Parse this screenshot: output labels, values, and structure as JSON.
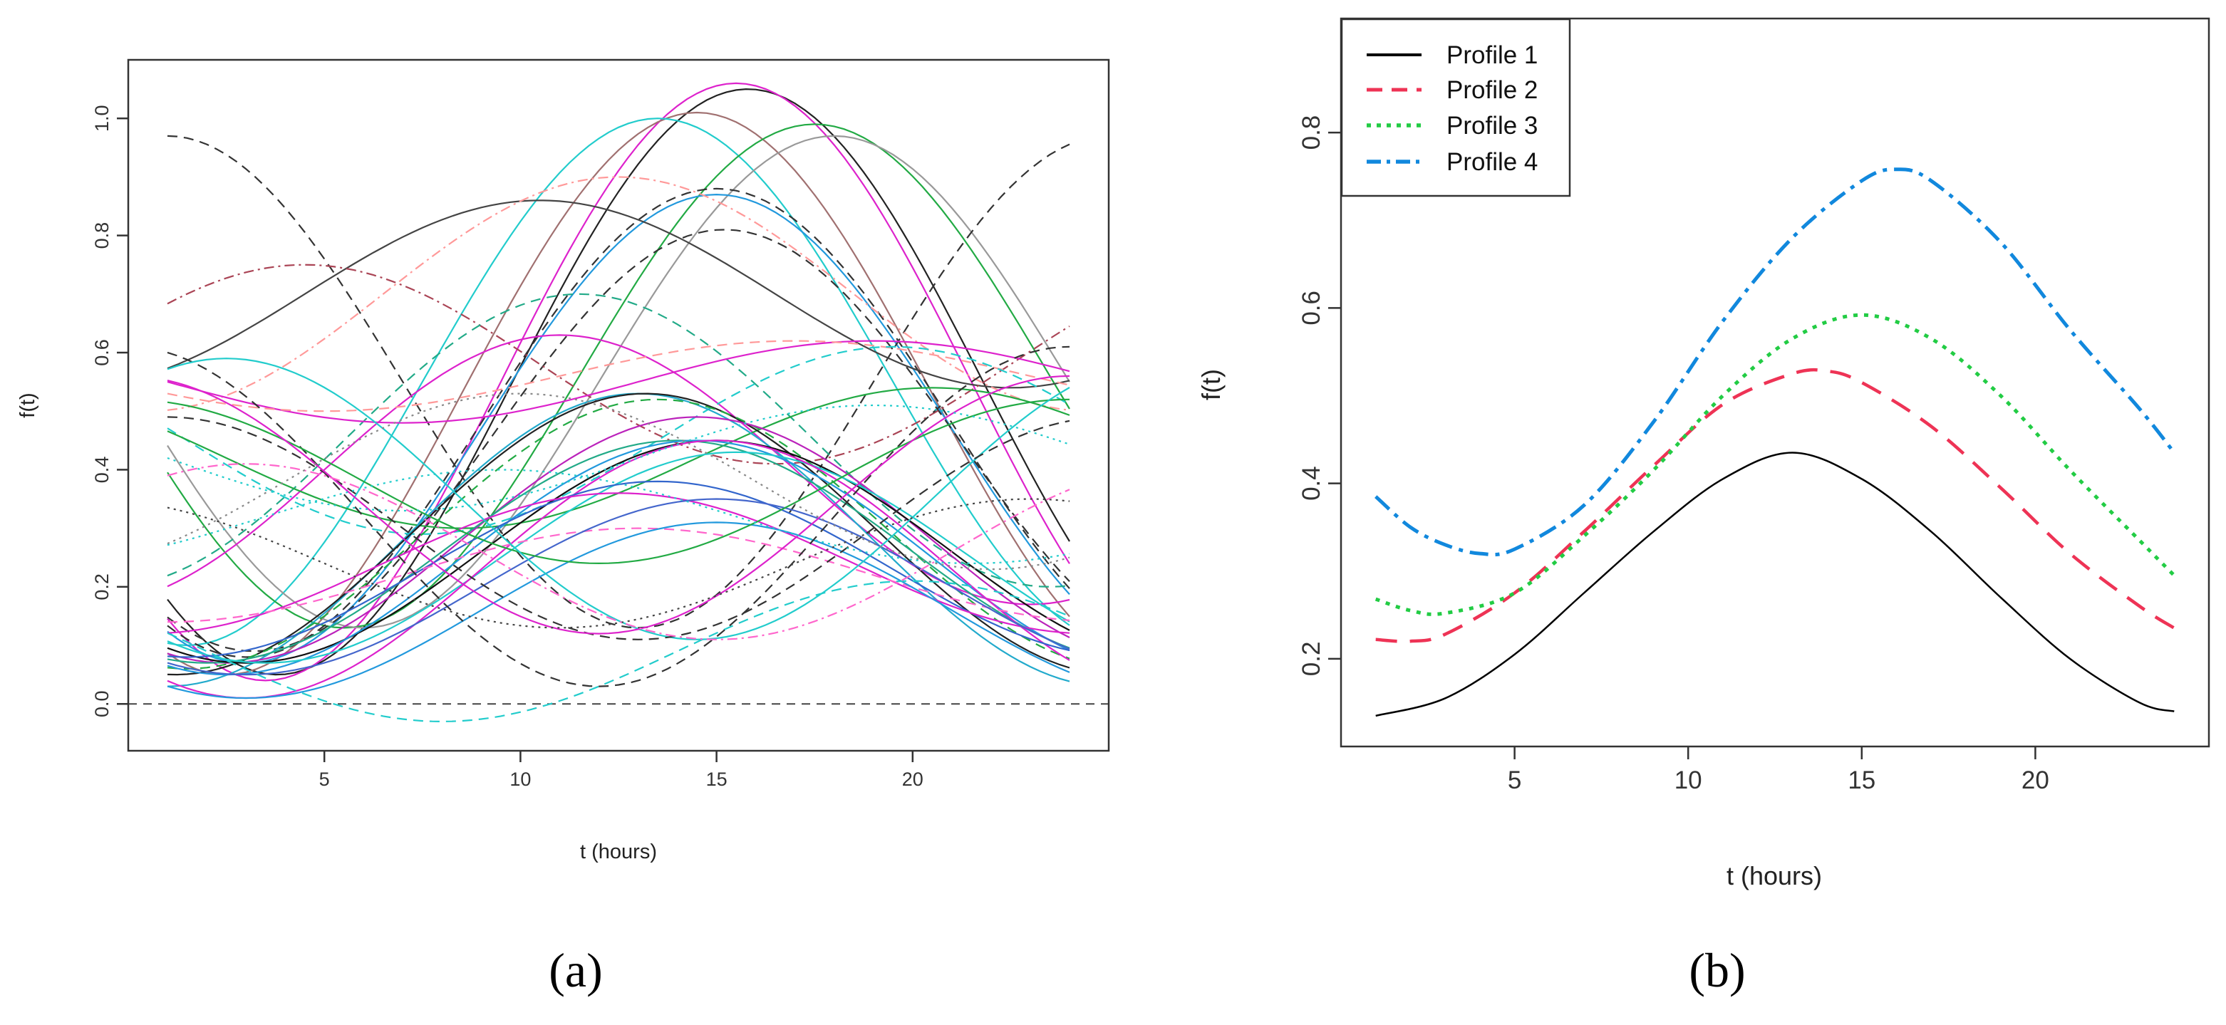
{
  "chart_data": [
    {
      "panel": "a",
      "type": "line",
      "caption": "(a)",
      "xlabel": "t (hours)",
      "ylabel": "f(t)",
      "xlim": [
        0,
        25
      ],
      "ylim": [
        -0.08,
        1.1
      ],
      "xticks": [
        5,
        10,
        15,
        20
      ],
      "yticks": [
        0.0,
        0.2,
        0.4,
        0.6,
        0.8,
        1.0
      ],
      "ytick_labels": [
        "0.0",
        "0.2",
        "0.4",
        "0.6",
        "0.8",
        "1.0"
      ],
      "reference_line": {
        "y": 0,
        "style": "dashed",
        "color": "#444444"
      },
      "t_range": [
        1,
        24
      ],
      "series": [
        {
          "mean": 0.55,
          "amp": 0.5,
          "peak": 15.8,
          "color": "#222222",
          "dash": "solid"
        },
        {
          "mean": 0.55,
          "amp": 0.51,
          "peak": 15.5,
          "color": "#dd22cc",
          "dash": "solid"
        },
        {
          "mean": 0.53,
          "amp": 0.48,
          "peak": 14.5,
          "color": "#a07070",
          "dash": "solid"
        },
        {
          "mean": 0.55,
          "amp": 0.45,
          "peak": 13.5,
          "color": "#22cccc",
          "dash": "solid"
        },
        {
          "mean": 0.56,
          "amp": 0.43,
          "peak": 17.5,
          "color": "#22aa44",
          "dash": "solid"
        },
        {
          "mean": 0.55,
          "amp": 0.42,
          "peak": 18.0,
          "color": "#999999",
          "dash": "solid"
        },
        {
          "mean": 0.48,
          "amp": 0.4,
          "peak": 15.0,
          "color": "#333333",
          "dash": "dashed"
        },
        {
          "mean": 0.47,
          "amp": 0.4,
          "peak": 15.0,
          "color": "#2299dd",
          "dash": "solid"
        },
        {
          "mean": 0.45,
          "amp": 0.36,
          "peak": 15.2,
          "color": "#333333",
          "dash": "dashed"
        },
        {
          "mean": 0.55,
          "amp": 0.42,
          "peak": 1.0,
          "color": "#333333",
          "dash": "dashed"
        },
        {
          "mean": 0.7,
          "amp": 0.16,
          "peak": 10.5,
          "color": "#444444",
          "dash": "solid"
        },
        {
          "mean": 0.7,
          "amp": 0.2,
          "peak": 12.5,
          "color": "#ff9999",
          "dash": "dashdot"
        },
        {
          "mean": 0.58,
          "amp": 0.17,
          "peak": 4.5,
          "color": "#aa4455",
          "dash": "dashdot"
        },
        {
          "mean": 0.45,
          "amp": 0.25,
          "peak": 11.5,
          "color": "#22aa88",
          "dash": "dashed"
        },
        {
          "mean": 0.4,
          "amp": 0.23,
          "peak": 11.0,
          "color": "#dd22cc",
          "dash": "solid"
        },
        {
          "mean": 0.55,
          "amp": 0.07,
          "peak": 19.0,
          "color": "#dd22cc",
          "dash": "solid"
        },
        {
          "mean": 0.56,
          "amp": 0.06,
          "peak": 17.0,
          "color": "#ff9999",
          "dash": "dashed"
        },
        {
          "mean": 0.45,
          "amp": 0.16,
          "peak": 19.5,
          "color": "#22cccc",
          "dash": "dashed"
        },
        {
          "mean": 0.42,
          "amp": 0.12,
          "peak": 20.5,
          "color": "#22aa44",
          "dash": "solid"
        },
        {
          "mean": 0.28,
          "amp": 0.25,
          "peak": 13.0,
          "color": "#22aacc",
          "dash": "solid"
        },
        {
          "mean": 0.29,
          "amp": 0.24,
          "peak": 13.2,
          "color": "#222222",
          "dash": "solid"
        },
        {
          "mean": 0.29,
          "amp": 0.23,
          "peak": 13.5,
          "color": "#22aa44",
          "dash": "dashed"
        },
        {
          "mean": 0.28,
          "amp": 0.21,
          "peak": 14.5,
          "color": "#bb22bb",
          "dash": "solid"
        },
        {
          "mean": 0.26,
          "amp": 0.19,
          "peak": 14.0,
          "color": "#22aa88",
          "dash": "solid"
        },
        {
          "mean": 0.26,
          "amp": 0.19,
          "peak": 15.0,
          "color": "#111111",
          "dash": "solid"
        },
        {
          "mean": 0.25,
          "amp": 0.2,
          "peak": 14.5,
          "color": "#2299dd",
          "dash": "solid"
        },
        {
          "mean": 0.25,
          "amp": 0.18,
          "peak": 15.5,
          "color": "#22cccc",
          "dash": "solid"
        },
        {
          "mean": 0.23,
          "amp": 0.22,
          "peak": 15.0,
          "color": "#dd22cc",
          "dash": "solid"
        },
        {
          "mean": 0.23,
          "amp": 0.15,
          "peak": 13.5,
          "color": "#3366cc",
          "dash": "solid"
        },
        {
          "mean": 0.24,
          "amp": 0.12,
          "peak": 12.5,
          "color": "#dd22cc",
          "dash": "solid"
        },
        {
          "mean": 0.22,
          "amp": 0.08,
          "peak": 13.0,
          "color": "#ff66cc",
          "dash": "dashed"
        },
        {
          "mean": 0.2,
          "amp": 0.15,
          "peak": 15.0,
          "color": "#4466cc",
          "dash": "solid"
        },
        {
          "mean": 0.16,
          "amp": 0.15,
          "peak": 15.0,
          "color": "#2299dd",
          "dash": "solid"
        },
        {
          "mean": 0.09,
          "amp": 0.12,
          "peak": 20.0,
          "color": "#22cccc",
          "dash": "dashed"
        },
        {
          "mean": 0.32,
          "amp": 0.29,
          "peak": 24.0,
          "color": "#333333",
          "dash": "dashed"
        },
        {
          "mean": 0.38,
          "amp": 0.14,
          "peak": 24.0,
          "color": "#22aa44",
          "dash": "solid"
        },
        {
          "mean": 0.35,
          "amp": 0.24,
          "peak": 2.5,
          "color": "#22cccc",
          "dash": "solid"
        },
        {
          "mean": 0.3,
          "amp": 0.19,
          "peak": 1.0,
          "color": "#333333",
          "dash": "dashed"
        },
        {
          "mean": 0.34,
          "amp": 0.22,
          "peak": 0.0,
          "color": "#dd22cc",
          "dash": "solid"
        },
        {
          "mean": 0.42,
          "amp": 0.09,
          "peak": 19.0,
          "color": "#22cccc",
          "dash": "dotted"
        },
        {
          "mean": 0.24,
          "amp": 0.11,
          "peak": 23.0,
          "color": "#444444",
          "dash": "dotted"
        },
        {
          "mean": 0.32,
          "amp": 0.08,
          "peak": 9.5,
          "color": "#22cccc",
          "dash": "dotted"
        },
        {
          "mean": 0.26,
          "amp": 0.15,
          "peak": 3.0,
          "color": "#ff66cc",
          "dash": "dashdot"
        },
        {
          "mean": 0.38,
          "amp": 0.15,
          "peak": 10.0,
          "color": "#888888",
          "dash": "dotted"
        }
      ]
    },
    {
      "panel": "b",
      "type": "line",
      "caption": "(b)",
      "xlabel": "t (hours)",
      "ylabel": "f(t)",
      "xlim": [
        0,
        25
      ],
      "ylim": [
        0.1,
        0.93
      ],
      "xticks": [
        5,
        10,
        15,
        20
      ],
      "yticks": [
        0.2,
        0.4,
        0.6,
        0.8
      ],
      "ytick_labels": [
        "0.2",
        "0.4",
        "0.6",
        "0.8"
      ],
      "t_range": [
        1,
        24
      ],
      "legend": {
        "position": "top-left"
      },
      "series": [
        {
          "name": "Profile 1",
          "color": "#000000",
          "dash": "solid",
          "width": 2.5,
          "t": [
            1,
            3,
            5,
            7,
            9,
            11,
            13,
            15,
            17,
            19,
            21,
            23,
            24
          ],
          "values": [
            0.135,
            0.155,
            0.205,
            0.275,
            0.345,
            0.405,
            0.435,
            0.405,
            0.345,
            0.27,
            0.2,
            0.15,
            0.14
          ]
        },
        {
          "name": "Profile 2",
          "color": "#ee3355",
          "dash": "dashed",
          "width": 4.5,
          "t": [
            1,
            2,
            3,
            5,
            7,
            9,
            11,
            13,
            14,
            15,
            17,
            19,
            21,
            23,
            24
          ],
          "values": [
            0.222,
            0.22,
            0.228,
            0.275,
            0.345,
            0.42,
            0.49,
            0.525,
            0.528,
            0.515,
            0.465,
            0.395,
            0.32,
            0.26,
            0.235
          ]
        },
        {
          "name": "Profile 3",
          "color": "#22cc44",
          "dash": "dotted",
          "width": 5,
          "t": [
            1,
            2,
            3,
            5,
            7,
            9,
            11,
            13,
            15,
            17,
            19,
            21,
            23,
            24
          ],
          "values": [
            0.268,
            0.255,
            0.252,
            0.275,
            0.34,
            0.415,
            0.5,
            0.565,
            0.592,
            0.565,
            0.5,
            0.415,
            0.335,
            0.295
          ]
        },
        {
          "name": "Profile 4",
          "color": "#1188dd",
          "dash": "dashdot",
          "width": 5,
          "t": [
            1,
            2,
            3,
            4,
            5,
            7,
            9,
            11,
            13,
            15,
            16,
            17,
            19,
            21,
            23,
            24
          ],
          "values": [
            0.385,
            0.35,
            0.33,
            0.32,
            0.325,
            0.375,
            0.47,
            0.585,
            0.68,
            0.745,
            0.758,
            0.745,
            0.675,
            0.575,
            0.485,
            0.435
          ]
        }
      ]
    }
  ]
}
